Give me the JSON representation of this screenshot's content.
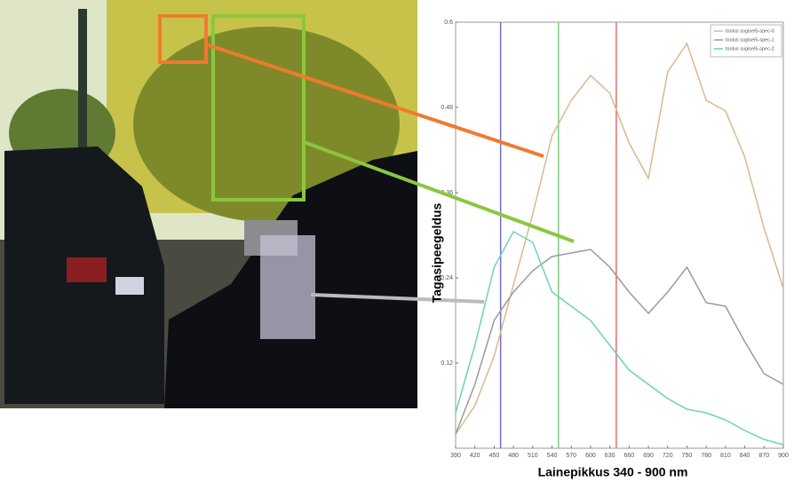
{
  "chart_data": {
    "type": "line",
    "x_label": "Lainepikkus 340 - 900 nm",
    "y_label": "Tagasipeegeldus",
    "x": [
      390,
      420,
      450,
      480,
      510,
      540,
      570,
      600,
      630,
      660,
      690,
      720,
      750,
      780,
      810,
      840,
      870,
      900
    ],
    "series": [
      {
        "name": "toolus sugisel5-spec-0",
        "color": "#d9b98a",
        "values": [
          0.02,
          0.06,
          0.13,
          0.23,
          0.33,
          0.44,
          0.49,
          0.525,
          0.5,
          0.43,
          0.38,
          0.53,
          0.57,
          0.49,
          0.475,
          0.41,
          0.31,
          0.225
        ]
      },
      {
        "name": "toolus sugisel5-spec-1",
        "color": "#9a9a9a",
        "values": [
          0.02,
          0.09,
          0.18,
          0.22,
          0.25,
          0.27,
          0.275,
          0.28,
          0.255,
          0.22,
          0.19,
          0.22,
          0.255,
          0.205,
          0.2,
          0.15,
          0.105,
          0.09
        ]
      },
      {
        "name": "toolus sugisel5-spec-2",
        "color": "#6fcfc0",
        "values": [
          0.05,
          0.145,
          0.255,
          0.305,
          0.29,
          0.22,
          0.2,
          0.18,
          0.145,
          0.11,
          0.09,
          0.07,
          0.055,
          0.05,
          0.04,
          0.025,
          0.0125,
          0.005
        ]
      }
    ],
    "vlines": [
      {
        "value": 460,
        "color": "#6f6fc0"
      },
      {
        "value": 550,
        "color": "#7fc97f"
      },
      {
        "value": 640,
        "color": "#e07070"
      }
    ],
    "xlim": [
      390,
      900
    ],
    "xticks": [
      390,
      420,
      450,
      480,
      510,
      540,
      570,
      600,
      630,
      660,
      690,
      720,
      750,
      780,
      810,
      840,
      870,
      900
    ],
    "ylim": [
      0,
      0.6
    ],
    "yticks": [
      0.12,
      0.24,
      0.36,
      0.48,
      0.6
    ],
    "legend": "top-right"
  }
}
